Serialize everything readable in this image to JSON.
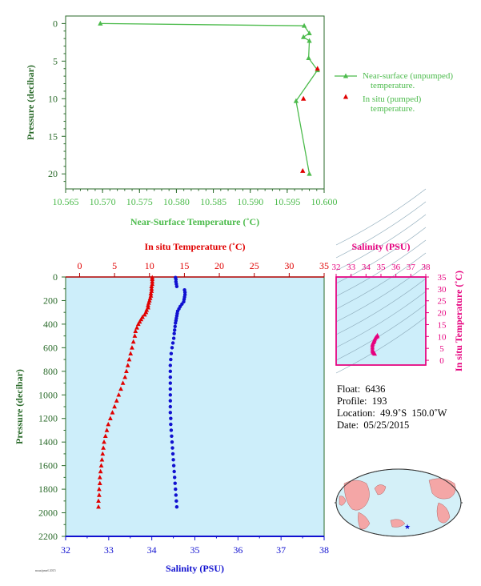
{
  "chart_data": [
    {
      "type": "line",
      "id": "near-surface-panel",
      "xlabel": "Near-Surface Temperature (˚C)",
      "ylabel": "Pressure (decibar)",
      "xlim": [
        10.565,
        10.6
      ],
      "ylim": [
        22,
        -1
      ],
      "x_ticks": [
        "10.565",
        "10.570",
        "10.575",
        "10.580",
        "10.585",
        "10.590",
        "10.595",
        "10.600"
      ],
      "y_ticks": [
        "0",
        "5",
        "10",
        "15",
        "20"
      ],
      "series": [
        {
          "name": "Near-surface (unpumped) temperature.",
          "color": "#4cbb4c",
          "marker": "triangle",
          "points": [
            [
              10.5697,
              0.0
            ],
            [
              10.5973,
              0.3
            ],
            [
              10.598,
              1.3
            ],
            [
              10.5972,
              1.8
            ],
            [
              10.598,
              2.3
            ],
            [
              10.5979,
              4.6
            ],
            [
              10.5991,
              6.2
            ],
            [
              10.5962,
              10.3
            ],
            [
              10.598,
              20.0
            ]
          ]
        },
        {
          "name": "In situ (pumped) temperature.",
          "color": "#e00000",
          "marker": "triangle",
          "points": [
            [
              10.5991,
              6.0
            ],
            [
              10.5972,
              10.0
            ],
            [
              10.5971,
              19.6
            ]
          ]
        }
      ],
      "legend": [
        "Near-surface (unpumped)",
        "temperature.",
        "In situ (pumped)",
        "temperature."
      ]
    },
    {
      "type": "scatter",
      "id": "profile-panel",
      "ylabel": "Pressure (decibar)",
      "ylim": [
        2200,
        0
      ],
      "y_ticks": [
        "0",
        "200",
        "400",
        "600",
        "800",
        "1000",
        "1200",
        "1400",
        "1600",
        "1800",
        "2000",
        "2200"
      ],
      "top_axis": {
        "label": "In situ Temperature (˚C)",
        "range": [
          -2,
          35
        ],
        "ticks": [
          "0",
          "5",
          "10",
          "15",
          "20",
          "25",
          "30",
          "35"
        ]
      },
      "bottom_axis": {
        "label": "Salinity (PSU)",
        "range": [
          32,
          38
        ],
        "ticks": [
          "32",
          "33",
          "34",
          "35",
          "36",
          "37",
          "38"
        ]
      },
      "temperature": {
        "color": "#e00000",
        "points": [
          [
            10.4,
            5
          ],
          [
            10.4,
            20
          ],
          [
            10.4,
            40
          ],
          [
            10.4,
            60
          ],
          [
            10.3,
            80
          ],
          [
            10.3,
            100
          ],
          [
            10.3,
            120
          ],
          [
            10.2,
            140
          ],
          [
            10.2,
            160
          ],
          [
            10.1,
            180
          ],
          [
            10.0,
            200
          ],
          [
            9.9,
            220
          ],
          [
            9.8,
            240
          ],
          [
            9.8,
            260
          ],
          [
            9.6,
            280
          ],
          [
            9.5,
            300
          ],
          [
            9.3,
            320
          ],
          [
            9.0,
            340
          ],
          [
            8.8,
            360
          ],
          [
            8.6,
            380
          ],
          [
            8.4,
            400
          ],
          [
            8.2,
            430
          ],
          [
            8.0,
            460
          ],
          [
            7.9,
            500
          ],
          [
            7.7,
            550
          ],
          [
            7.5,
            600
          ],
          [
            7.3,
            650
          ],
          [
            7.1,
            700
          ],
          [
            6.9,
            750
          ],
          [
            6.7,
            800
          ],
          [
            6.5,
            850
          ],
          [
            6.2,
            900
          ],
          [
            5.9,
            950
          ],
          [
            5.6,
            1000
          ],
          [
            5.3,
            1050
          ],
          [
            5.0,
            1100
          ],
          [
            4.7,
            1150
          ],
          [
            4.4,
            1200
          ],
          [
            4.1,
            1250
          ],
          [
            3.9,
            1300
          ],
          [
            3.7,
            1350
          ],
          [
            3.5,
            1400
          ],
          [
            3.4,
            1450
          ],
          [
            3.3,
            1500
          ],
          [
            3.2,
            1550
          ],
          [
            3.1,
            1600
          ],
          [
            3.0,
            1650
          ],
          [
            2.9,
            1700
          ],
          [
            2.9,
            1750
          ],
          [
            2.8,
            1800
          ],
          [
            2.8,
            1850
          ],
          [
            2.7,
            1900
          ],
          [
            2.7,
            1950
          ]
        ]
      },
      "salinity": {
        "color": "#1010d0",
        "points": [
          [
            34.55,
            5
          ],
          [
            34.56,
            20
          ],
          [
            34.56,
            40
          ],
          [
            34.57,
            60
          ],
          [
            34.58,
            80
          ],
          [
            34.76,
            110
          ],
          [
            34.77,
            130
          ],
          [
            34.77,
            150
          ],
          [
            34.76,
            170
          ],
          [
            34.75,
            190
          ],
          [
            34.74,
            210
          ],
          [
            34.7,
            230
          ],
          [
            34.66,
            250
          ],
          [
            34.63,
            270
          ],
          [
            34.6,
            290
          ],
          [
            34.59,
            310
          ],
          [
            34.58,
            330
          ],
          [
            34.57,
            350
          ],
          [
            34.56,
            370
          ],
          [
            34.55,
            390
          ],
          [
            34.54,
            420
          ],
          [
            34.53,
            450
          ],
          [
            34.52,
            480
          ],
          [
            34.51,
            520
          ],
          [
            34.49,
            560
          ],
          [
            34.47,
            600
          ],
          [
            34.45,
            650
          ],
          [
            34.44,
            700
          ],
          [
            34.43,
            750
          ],
          [
            34.43,
            800
          ],
          [
            34.43,
            850
          ],
          [
            34.43,
            900
          ],
          [
            34.43,
            950
          ],
          [
            34.43,
            1000
          ],
          [
            34.43,
            1050
          ],
          [
            34.43,
            1100
          ],
          [
            34.43,
            1150
          ],
          [
            34.44,
            1200
          ],
          [
            34.44,
            1250
          ],
          [
            34.45,
            1300
          ],
          [
            34.46,
            1350
          ],
          [
            34.47,
            1400
          ],
          [
            34.48,
            1450
          ],
          [
            34.49,
            1500
          ],
          [
            34.5,
            1550
          ],
          [
            34.51,
            1600
          ],
          [
            34.52,
            1650
          ],
          [
            34.53,
            1700
          ],
          [
            34.54,
            1750
          ],
          [
            34.55,
            1800
          ],
          [
            34.56,
            1850
          ],
          [
            34.57,
            1900
          ],
          [
            34.58,
            1950
          ]
        ]
      }
    },
    {
      "type": "scatter",
      "id": "ts-panel",
      "top_axis": {
        "label": "Salinity (PSU)",
        "range": [
          32,
          38
        ],
        "ticks": [
          "32",
          "33",
          "34",
          "35",
          "36",
          "37",
          "38"
        ]
      },
      "right_axis": {
        "label": "In situ Temperature (˚C)",
        "range": [
          -2,
          35
        ],
        "ticks": [
          "0",
          "5",
          "10",
          "15",
          "20",
          "25",
          "30",
          "35"
        ]
      },
      "color": "#e6007e",
      "points": [
        [
          34.76,
          10.4
        ],
        [
          34.75,
          10.0
        ],
        [
          34.66,
          9.6
        ],
        [
          34.6,
          9.0
        ],
        [
          34.56,
          8.4
        ],
        [
          34.53,
          7.9
        ],
        [
          34.49,
          7.5
        ],
        [
          34.45,
          6.9
        ],
        [
          34.43,
          6.2
        ],
        [
          34.43,
          5.3
        ],
        [
          34.43,
          4.4
        ],
        [
          34.45,
          3.7
        ],
        [
          34.49,
          3.3
        ],
        [
          34.53,
          3.0
        ],
        [
          34.58,
          2.7
        ]
      ]
    }
  ],
  "float_info": {
    "float": "Float:  6436",
    "profile": "Profile:  193",
    "location": "Location:  49.9˚S  150.0˚W",
    "date": "Date:  05/25/2015"
  },
  "map": {
    "marker": "★",
    "land_color": "#f4a6a6",
    "ocean_color": "#d4f0f8"
  },
  "colors": {
    "near_surface": "#4cbb4c",
    "in_situ": "#e00000",
    "salinity": "#1010d0",
    "ts": "#e6007e",
    "axis_green": "#2a6a2a",
    "axis_blue": "#1010d0",
    "panel_bg": "#cdeefa"
  },
  "footer": "noaa/pmel 2015"
}
